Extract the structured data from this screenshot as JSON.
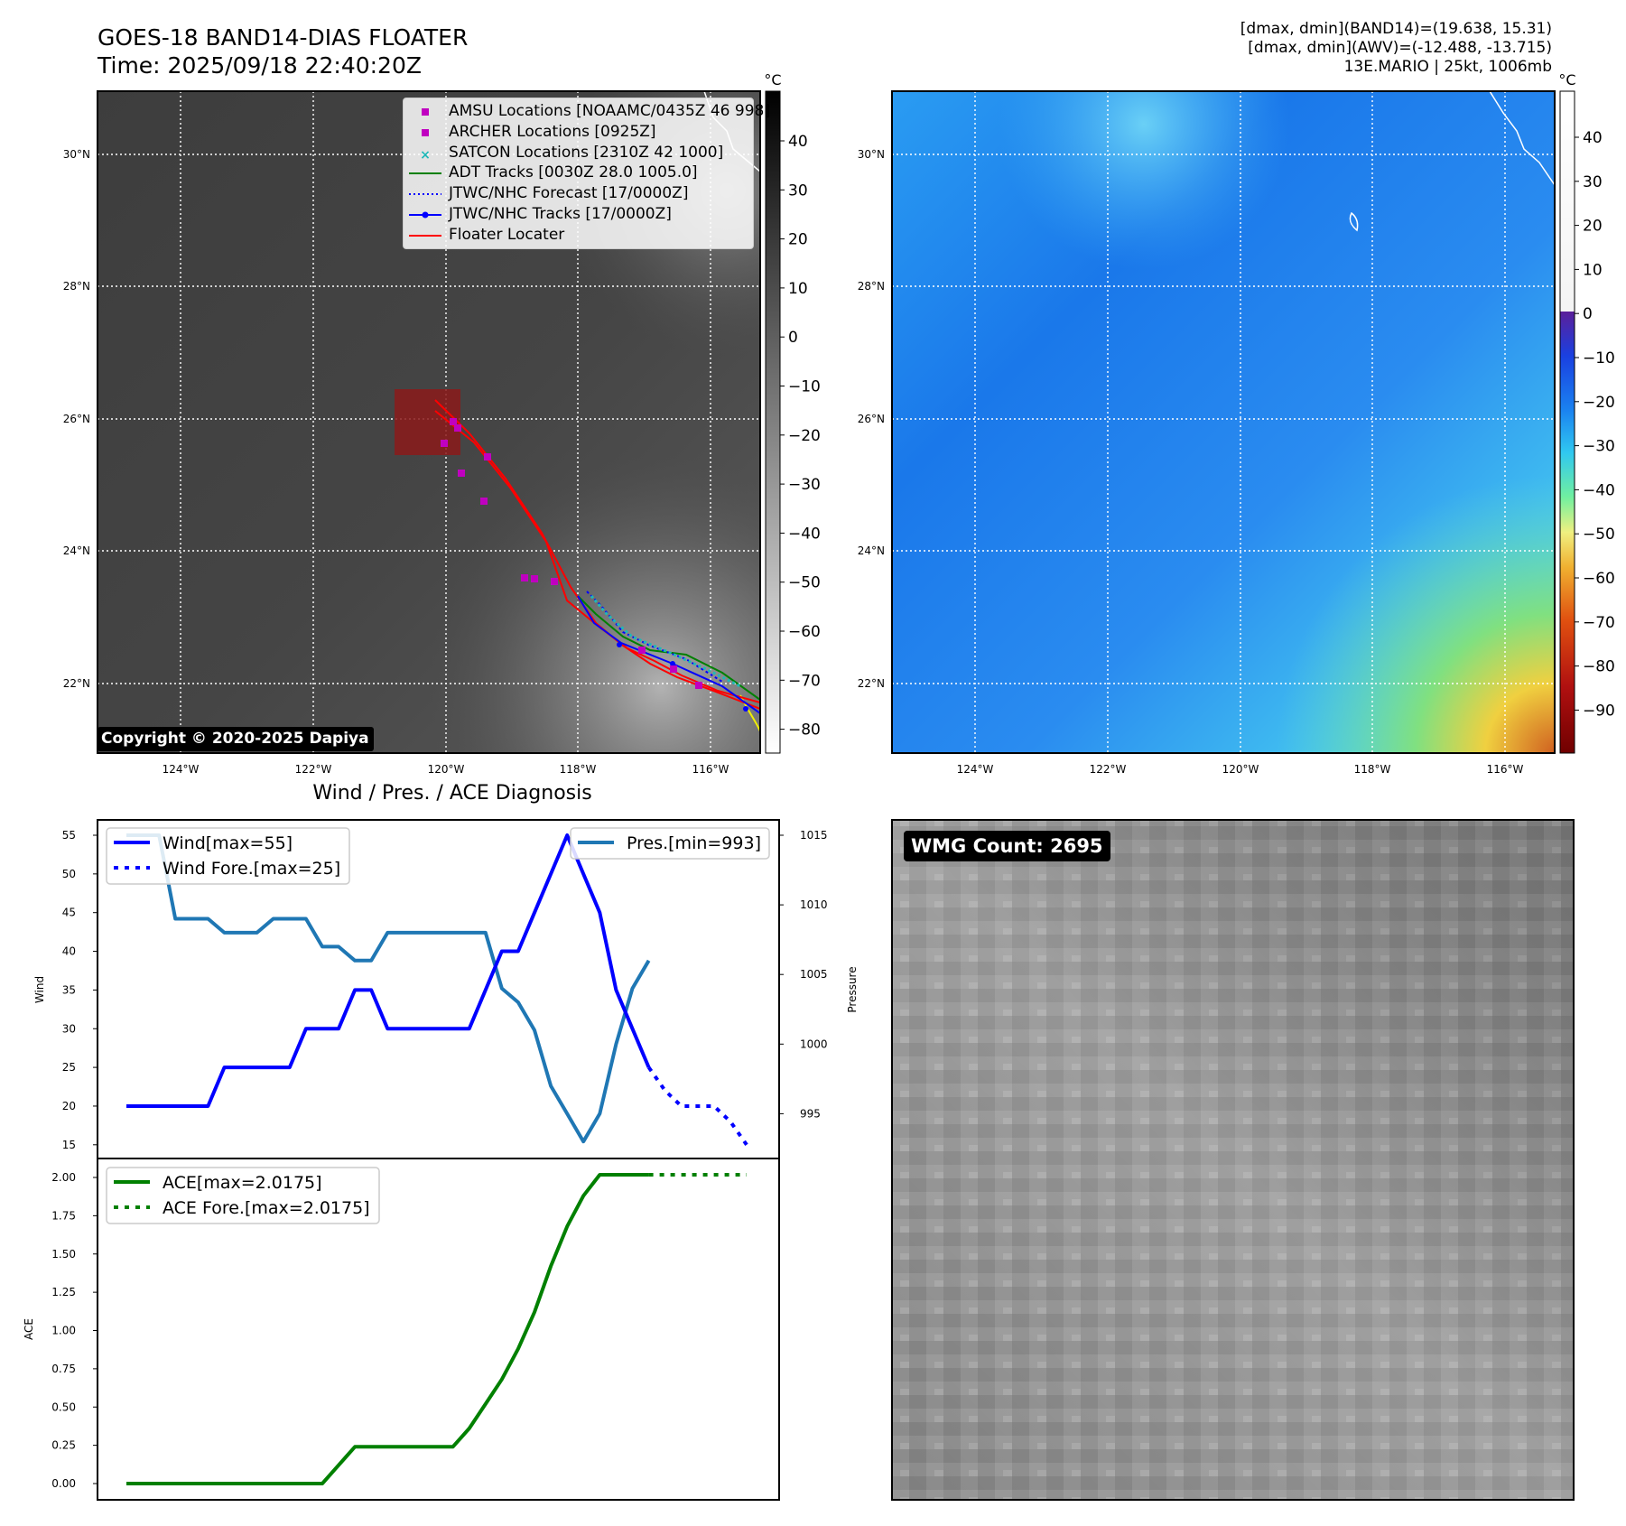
{
  "header": {
    "title_line1": "GOES-18 BAND14-DIAS FLOATER",
    "title_line2": "Time: 2025/09/18 22:40:20Z",
    "info_line1": "[dmax, dmin](BAND14)=(19.638, 15.31)",
    "info_line2": "[dmax, dmin](AWV)=(-12.488, -13.715)",
    "info_line3": "13E.MARIO | 25kt, 1006mb"
  },
  "map": {
    "lon_labels": [
      "124°W",
      "122°W",
      "120°W",
      "118°W",
      "116°W"
    ],
    "lat_labels": [
      "30°N",
      "28°N",
      "26°N",
      "24°N",
      "22°N"
    ],
    "copyright": "Copyright © 2020-2025 Dapiya",
    "colors": {
      "amsu": "#c000c0",
      "archer": "#c000c0",
      "satcon": "#1fb8b8",
      "adt": "#008000",
      "jtwc_forecast": "#0000ff",
      "jtwc_track": "#0000ff",
      "floater": "#ff0000"
    }
  },
  "map_legend": [
    {
      "key": "amsu",
      "label": "AMSU Locations [NOAAMC/0435Z 46 998]"
    },
    {
      "key": "archer",
      "label": "ARCHER Locations [0925Z]"
    },
    {
      "key": "satcon",
      "label": "SATCON Locations [2310Z 42 1000]"
    },
    {
      "key": "adt",
      "label": "ADT Tracks [0030Z 28.0 1005.0]"
    },
    {
      "key": "jtwc_forecast",
      "label": "JTWC/NHC Forecast [17/0000Z]"
    },
    {
      "key": "jtwc_track",
      "label": "JTWC/NHC Tracks [17/0000Z]"
    },
    {
      "key": "floater",
      "label": "Floater Locater"
    }
  ],
  "colorbar_ir": {
    "unit": "°C",
    "ticks": [
      "40",
      "30",
      "20",
      "10",
      "0",
      "−10",
      "−20",
      "−30",
      "−40",
      "−50",
      "−60",
      "−70",
      "−80"
    ]
  },
  "colorbar_awv": {
    "unit": "°C",
    "ticks": [
      "40",
      "30",
      "20",
      "10",
      "0",
      "−10",
      "−20",
      "−30",
      "−40",
      "−50",
      "−60",
      "−70",
      "−80",
      "−90"
    ]
  },
  "diag": {
    "title": "Wind / Pres. / ACE Diagnosis",
    "wind_ylabel": "Wind",
    "pres_ylabel": "Pressure",
    "ace_ylabel": "ACE",
    "wind_legend": [
      "Wind[max=55]",
      "Wind Fore.[max=25]"
    ],
    "pres_legend": "Pres.[min=993]",
    "ace_legend": [
      "ACE[max=2.0175]",
      "ACE Fore.[max=2.0175]"
    ],
    "wind_ticks": [
      "55",
      "50",
      "45",
      "40",
      "35",
      "30",
      "25",
      "20",
      "15"
    ],
    "pres_ticks": [
      "1015",
      "1010",
      "1005",
      "1000",
      "995"
    ],
    "ace_ticks": [
      "2.00",
      "1.75",
      "1.50",
      "1.25",
      "1.00",
      "0.75",
      "0.50",
      "0.25",
      "0.00"
    ]
  },
  "wmg": {
    "label": "WMG Count: 2695"
  },
  "chart_data": [
    {
      "type": "line",
      "title": "Wind / Pres. / ACE Diagnosis",
      "xlabel": "",
      "ylabel": "Wind",
      "ylim": [
        14,
        56
      ],
      "x": [
        0,
        1,
        2,
        3,
        4,
        5,
        6,
        7,
        8,
        9,
        10,
        11,
        12,
        13,
        14,
        15,
        16,
        17,
        18,
        19,
        20,
        21,
        22,
        23,
        24,
        25,
        26,
        27,
        28,
        29,
        30,
        31,
        32,
        33,
        34,
        35,
        36,
        37,
        38,
        39
      ],
      "series": [
        {
          "name": "Wind[max=55]",
          "color": "#0000ff",
          "style": "solid",
          "x": [
            0,
            1,
            2,
            3,
            4,
            5,
            6,
            7,
            8,
            9,
            10,
            11,
            12,
            13,
            14,
            15,
            16,
            17,
            18,
            19,
            20,
            21,
            22,
            23,
            24,
            25,
            26,
            27,
            28,
            29,
            30,
            31,
            32
          ],
          "values": [
            20,
            20,
            20,
            20,
            20,
            20,
            25,
            25,
            25,
            25,
            25,
            30,
            30,
            30,
            35,
            35,
            30,
            30,
            30,
            30,
            30,
            30,
            35,
            40,
            40,
            45,
            50,
            55,
            50,
            45,
            35,
            30,
            25
          ]
        },
        {
          "name": "Wind Fore.[max=25]",
          "color": "#0000ff",
          "style": "dotted",
          "x": [
            32,
            33,
            34,
            35,
            36,
            37,
            38
          ],
          "values": [
            25,
            22,
            20,
            20,
            20,
            18,
            15
          ]
        }
      ]
    },
    {
      "type": "line",
      "ylabel": "Pressure",
      "ylim": [
        992,
        1016
      ],
      "series": [
        {
          "name": "Pres.[min=993]",
          "color": "#1f77b4",
          "style": "solid",
          "x": [
            0,
            1,
            2,
            3,
            4,
            5,
            6,
            7,
            8,
            9,
            10,
            11,
            12,
            13,
            14,
            15,
            16,
            17,
            18,
            19,
            20,
            21,
            22,
            23,
            24,
            25,
            26,
            27,
            28,
            29,
            30,
            31,
            32
          ],
          "values": [
            1015,
            1015,
            1015,
            1009,
            1009,
            1009,
            1008,
            1008,
            1008,
            1009,
            1009,
            1009,
            1007,
            1007,
            1006,
            1006,
            1008,
            1008,
            1008,
            1008,
            1008,
            1008,
            1008,
            1004,
            1003,
            1001,
            997,
            995,
            993,
            995,
            1000,
            1004,
            1006
          ]
        }
      ]
    },
    {
      "type": "line",
      "ylabel": "ACE",
      "ylim": [
        -0.1,
        2.12
      ],
      "series": [
        {
          "name": "ACE[max=2.0175]",
          "color": "#008000",
          "style": "solid",
          "x": [
            0,
            1,
            2,
            3,
            4,
            5,
            6,
            7,
            8,
            9,
            10,
            11,
            12,
            13,
            14,
            15,
            16,
            17,
            18,
            19,
            20,
            21,
            22,
            23,
            24,
            25,
            26,
            27,
            28,
            29,
            30,
            31,
            32
          ],
          "values": [
            0,
            0,
            0,
            0,
            0,
            0,
            0,
            0,
            0,
            0,
            0,
            0,
            0,
            0.12,
            0.24,
            0.24,
            0.24,
            0.24,
            0.24,
            0.24,
            0.24,
            0.36,
            0.52,
            0.68,
            0.88,
            1.12,
            1.42,
            1.68,
            1.88,
            2.0175,
            2.0175,
            2.0175,
            2.0175
          ]
        },
        {
          "name": "ACE Fore.[max=2.0175]",
          "color": "#008000",
          "style": "dotted",
          "x": [
            32,
            33,
            34,
            35,
            36,
            37,
            38
          ],
          "values": [
            2.0175,
            2.0175,
            2.0175,
            2.0175,
            2.0175,
            2.0175,
            2.0175
          ]
        }
      ]
    }
  ]
}
